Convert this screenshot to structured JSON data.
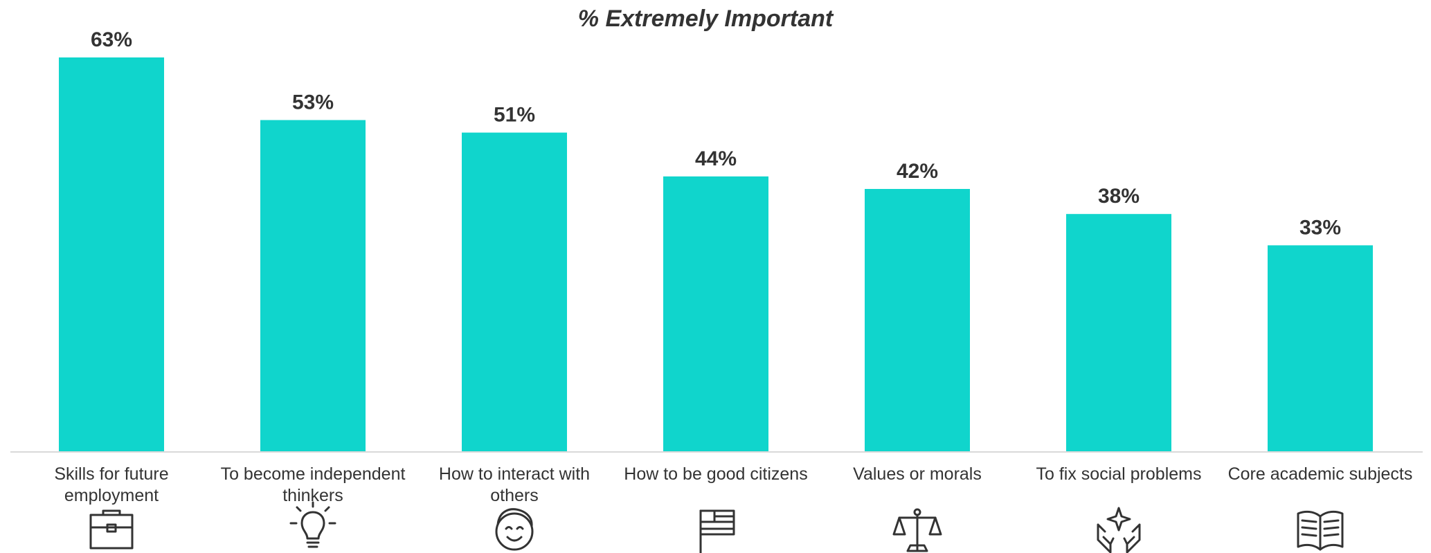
{
  "chart_data": {
    "type": "bar",
    "title": "% Extremely Important",
    "categories": [
      [
        "Skills for future",
        "employment"
      ],
      [
        "To become independent",
        "thinkers"
      ],
      [
        "How to interact with",
        "others"
      ],
      [
        "How to be good citizens"
      ],
      [
        "Values or morals"
      ],
      [
        "To fix social problems"
      ],
      [
        "Core academic subjects"
      ]
    ],
    "values": [
      63,
      53,
      51,
      44,
      42,
      38,
      33
    ],
    "value_labels": [
      "63%",
      "53%",
      "51%",
      "44%",
      "42%",
      "38%",
      "33%"
    ],
    "icons": [
      "briefcase-icon",
      "lightbulb-icon",
      "smiling-face-icon",
      "flag-icon",
      "scales-icon",
      "hands-star-icon",
      "open-book-icon"
    ],
    "ylim": [
      0,
      63
    ],
    "bar_color": "#10D5CC",
    "axis_color": "#D9D9D9",
    "text_color": "#333333",
    "grid": false,
    "legend": "none"
  }
}
